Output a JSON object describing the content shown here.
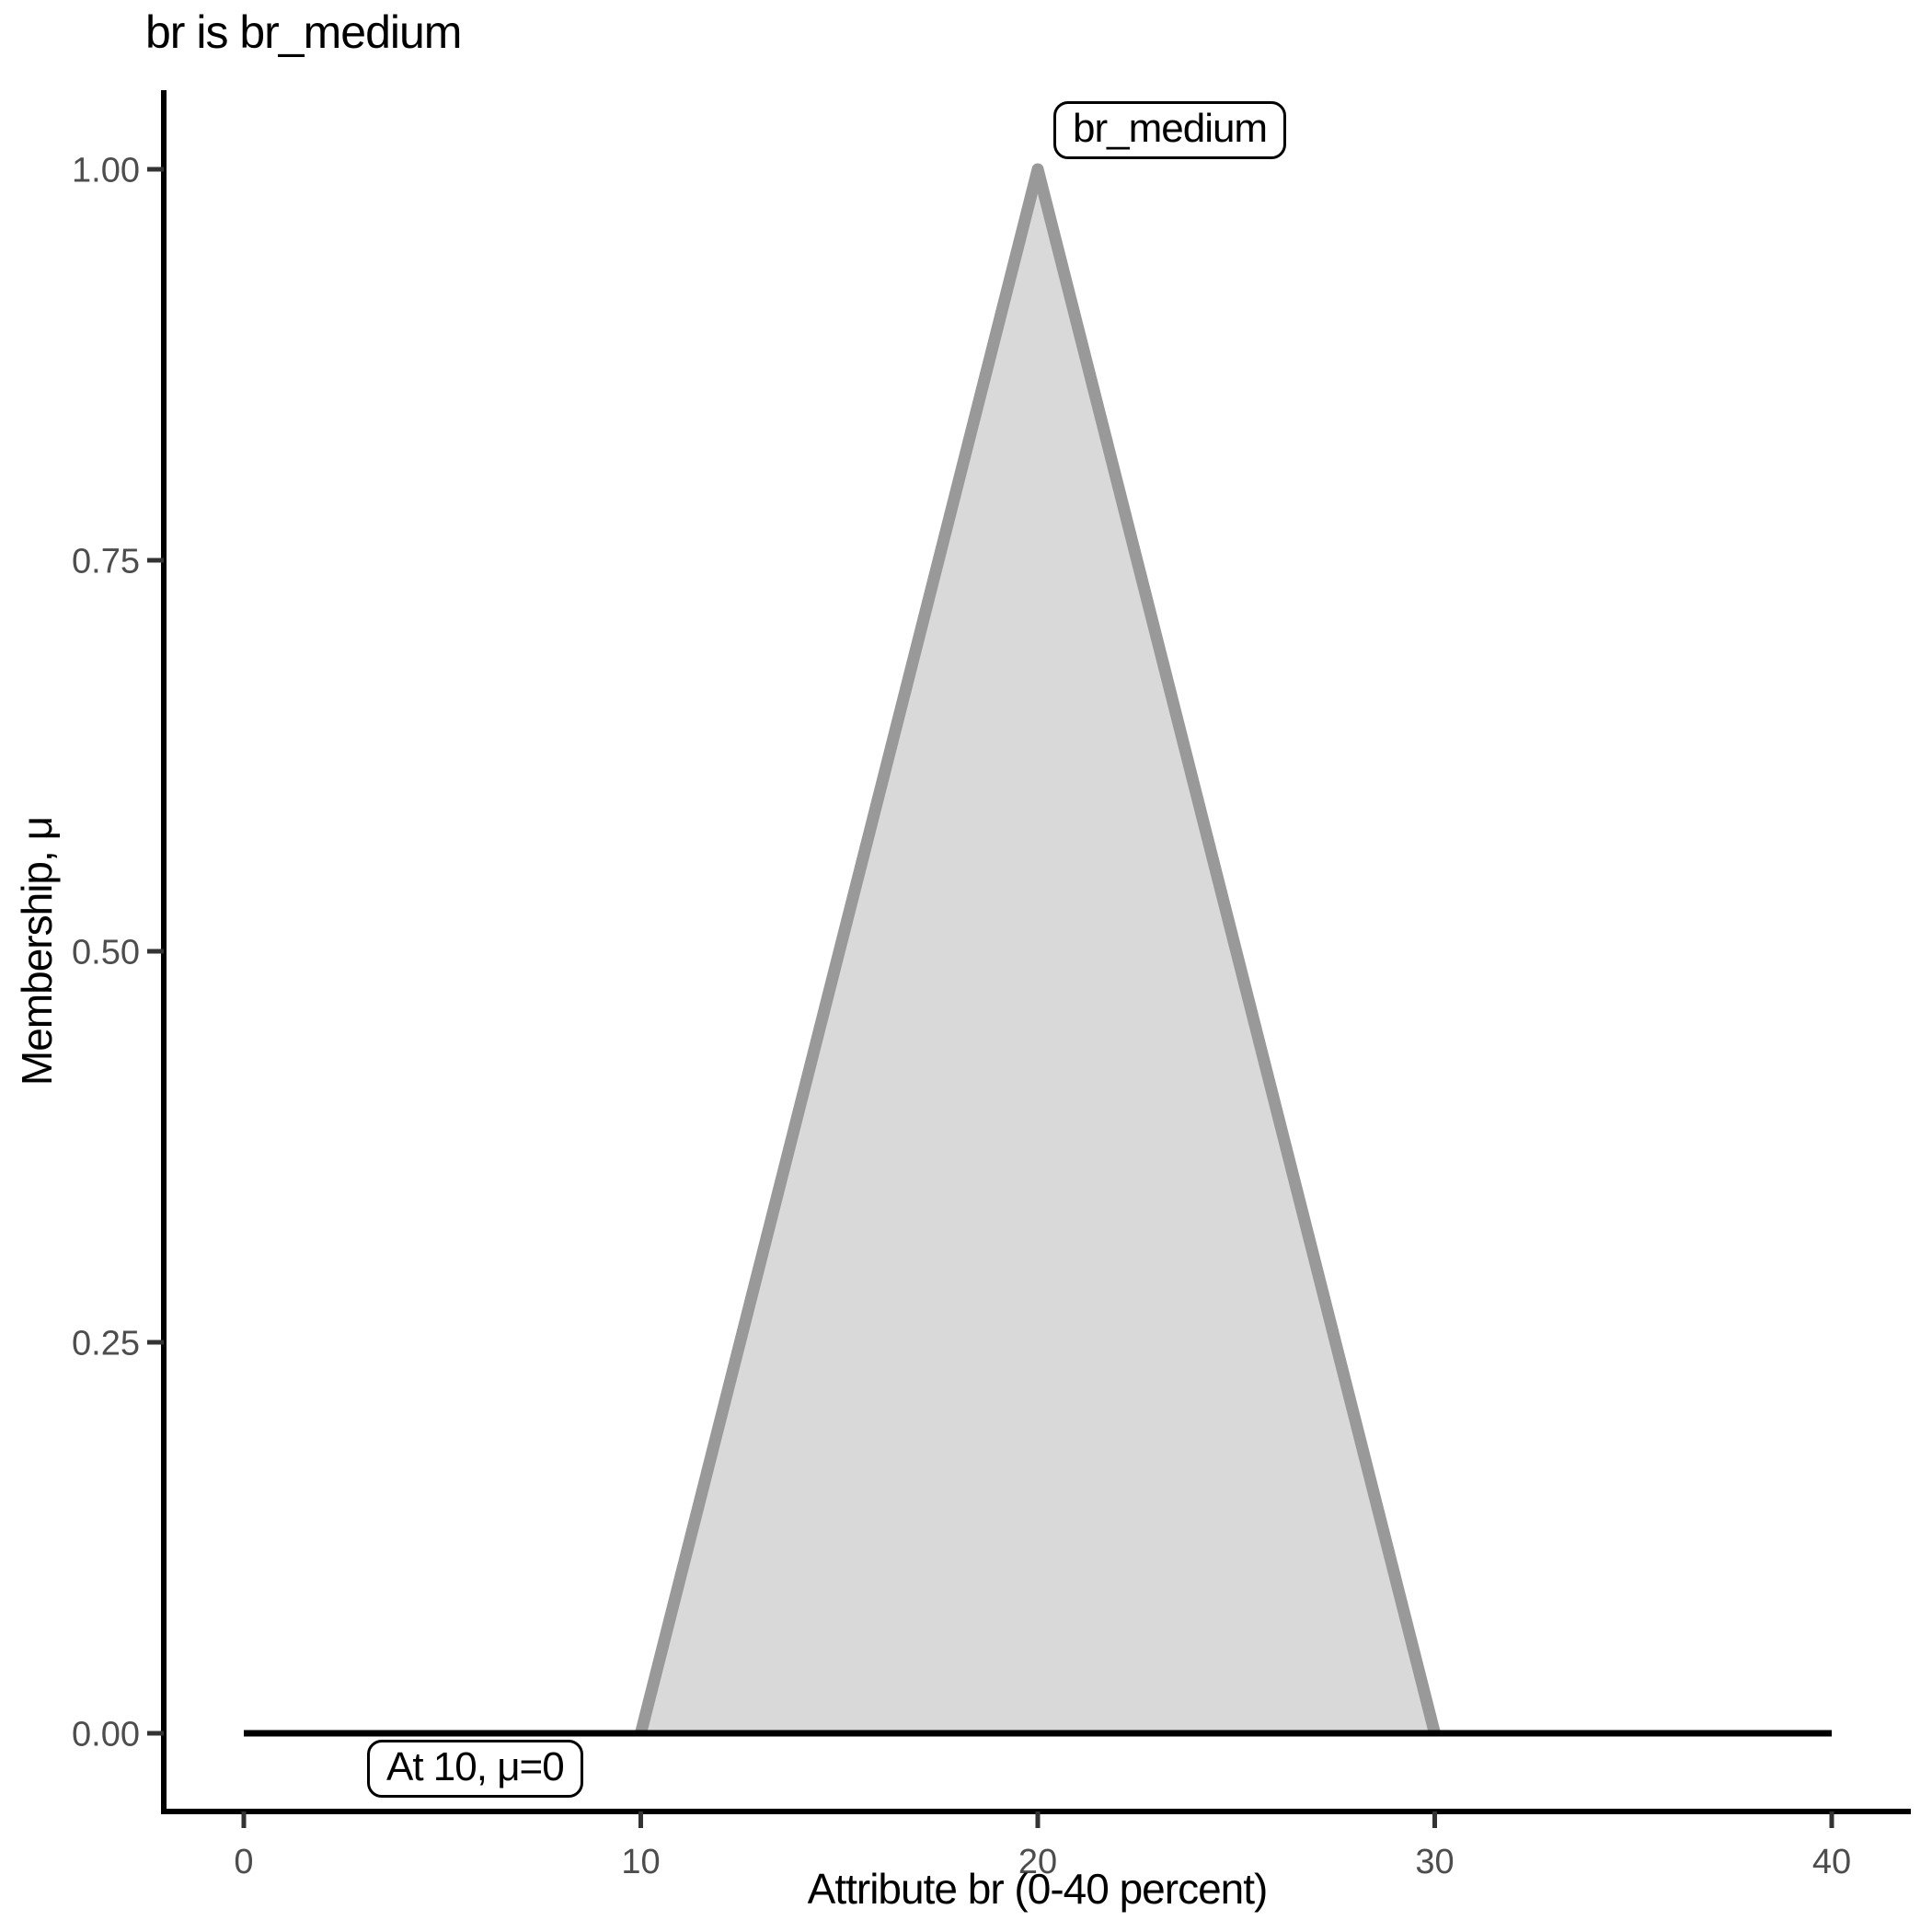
{
  "title": "br is br_medium",
  "chart_data": {
    "type": "area",
    "title": "br is br_medium",
    "xlabel": "Attribute br (0-40 percent)",
    "ylabel": "Membership, μ",
    "xlim": [
      0,
      40
    ],
    "ylim": [
      0,
      1
    ],
    "grid": false,
    "legend_position": "none",
    "x_ticks": {
      "values": [
        0,
        10,
        20,
        30,
        40
      ],
      "labels": [
        "0",
        "10",
        "20",
        "30",
        "40"
      ]
    },
    "y_ticks": {
      "values": [
        0,
        0.25,
        0.5,
        0.75,
        1
      ],
      "labels": [
        "0.00",
        "0.25",
        "0.50",
        "0.75",
        "1.00"
      ]
    },
    "series": [
      {
        "name": "br_medium",
        "x": [
          0,
          10,
          20,
          30,
          40
        ],
        "y": [
          0,
          0,
          1,
          0,
          0
        ],
        "fill_color": "#d9d9d9",
        "stroke_color": "#999999"
      }
    ],
    "baseline": {
      "y": 0,
      "x_range": [
        0,
        40
      ],
      "color": "#000000"
    },
    "annotations": [
      {
        "id": "peak-label",
        "text": "br_medium",
        "x": 20,
        "y": 1
      },
      {
        "id": "zero-label",
        "text": "At 10, μ=0",
        "x": 10,
        "y": 0
      }
    ]
  },
  "colors": {
    "background": "#ffffff",
    "axis_line": "#000000",
    "tick_mark": "#333333",
    "tick_label": "#4d4d4d",
    "annotation_border": "#000000",
    "annotation_background": "#ffffff",
    "title_text": "#000000"
  }
}
